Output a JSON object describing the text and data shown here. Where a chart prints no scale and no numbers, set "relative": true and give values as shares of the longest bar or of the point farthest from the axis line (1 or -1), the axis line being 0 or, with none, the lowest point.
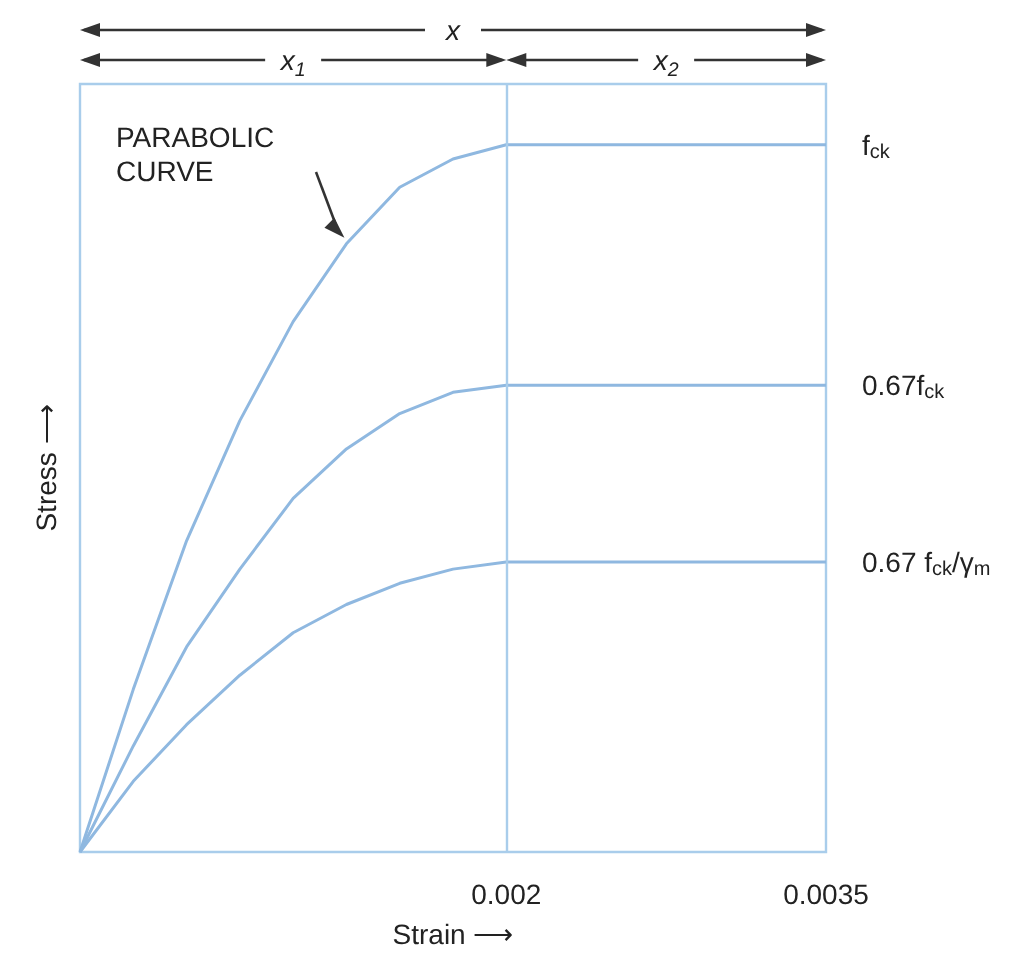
{
  "chart_data": {
    "type": "line",
    "relative": true,
    "xlabel": "Strain ⟶",
    "ylabel": "Stress ⟶",
    "x": [
      0,
      0.00025,
      0.0005,
      0.00075,
      0.001,
      0.00125,
      0.0015,
      0.00175,
      0.002,
      0.0035
    ],
    "xlim": [
      0,
      0.0035
    ],
    "xticks": [
      0.002,
      0.0035
    ],
    "ref_lines": [
      {
        "axis": "x",
        "value": 0.002,
        "color": "#a9cdeb"
      }
    ],
    "legend": false,
    "marker": "none",
    "line_style": "solid",
    "series": [
      {
        "name": "f$_{ck}$",
        "color": "#8fb8e0",
        "values": [
          0,
          0.23,
          0.44,
          0.61,
          0.75,
          0.86,
          0.94,
          0.98,
          1,
          1
        ]
      },
      {
        "name": "0.67f$_{ck}$",
        "color": "#8fb8e0",
        "values": [
          0,
          0.15,
          0.29,
          0.4,
          0.5,
          0.57,
          0.62,
          0.65,
          0.66,
          0.66
        ]
      },
      {
        "name": "0.67 f$_{ck}$/γ$_{m}$",
        "color": "#8fb8e0",
        "values": [
          0,
          0.1,
          0.18,
          0.25,
          0.31,
          0.35,
          0.38,
          0.4,
          0.41,
          0.41
        ]
      }
    ],
    "annotations": [
      "x",
      "x$_{1}$",
      "x$_{2}$",
      "PARABOLIC CURVE"
    ]
  }
}
